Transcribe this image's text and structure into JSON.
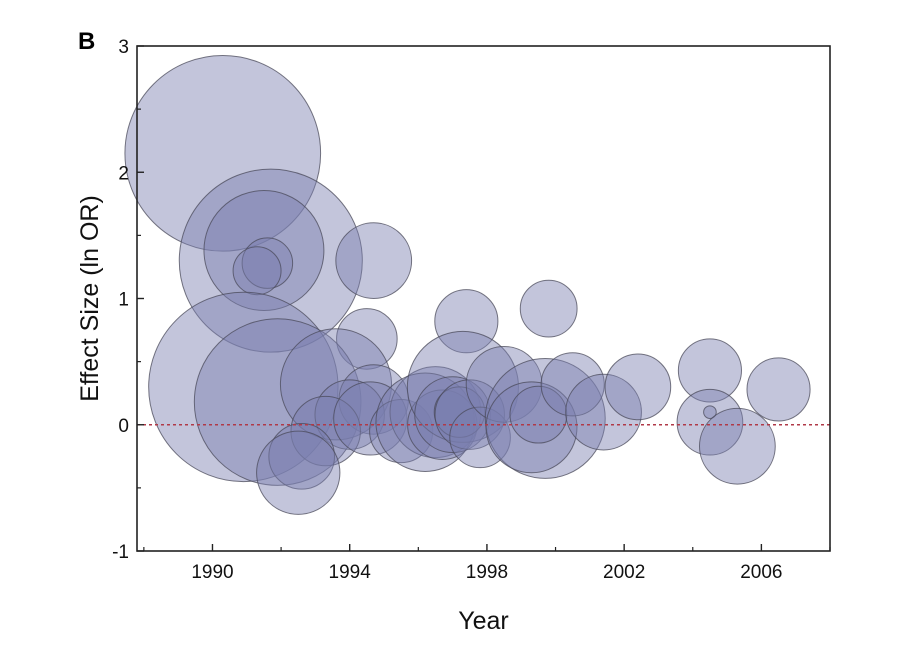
{
  "panel_label": "B",
  "chart_data": {
    "type": "scatter",
    "variant": "bubble",
    "xlabel": "Year",
    "ylabel": "Effect Size (ln OR)",
    "xlim": [
      1987.8,
      2008
    ],
    "ylim": [
      -1,
      3
    ],
    "x_ticks": [
      1990,
      1994,
      1998,
      2002,
      2006
    ],
    "y_ticks": [
      -1,
      0,
      1,
      2,
      3
    ],
    "reference_line": {
      "y": 0,
      "style": "dotted",
      "color": "#b03a48"
    },
    "bubble_color": "#7a7fb0",
    "bubble_edge_color": "#4a4a5a",
    "points": [
      {
        "x": 1990.3,
        "y": 2.15,
        "r": 1.55
      },
      {
        "x": 1991.7,
        "y": 1.3,
        "r": 1.45
      },
      {
        "x": 1991.5,
        "y": 1.38,
        "r": 0.95
      },
      {
        "x": 1991.6,
        "y": 1.28,
        "r": 0.4
      },
      {
        "x": 1991.3,
        "y": 1.22,
        "r": 0.38
      },
      {
        "x": 1994.7,
        "y": 1.3,
        "r": 0.6
      },
      {
        "x": 1994.5,
        "y": 0.68,
        "r": 0.48
      },
      {
        "x": 1990.9,
        "y": 0.3,
        "r": 1.5
      },
      {
        "x": 1991.9,
        "y": 0.18,
        "r": 1.32
      },
      {
        "x": 1993.6,
        "y": 0.32,
        "r": 0.88
      },
      {
        "x": 1994.7,
        "y": 0.2,
        "r": 0.55
      },
      {
        "x": 1994.0,
        "y": 0.08,
        "r": 0.55
      },
      {
        "x": 1993.3,
        "y": -0.05,
        "r": 0.55
      },
      {
        "x": 1992.6,
        "y": -0.25,
        "r": 0.52
      },
      {
        "x": 1992.5,
        "y": -0.38,
        "r": 0.66
      },
      {
        "x": 1994.6,
        "y": 0.05,
        "r": 0.58
      },
      {
        "x": 1995.5,
        "y": -0.05,
        "r": 0.5
      },
      {
        "x": 1996.5,
        "y": 0.1,
        "r": 0.72
      },
      {
        "x": 1996.2,
        "y": 0.02,
        "r": 0.78
      },
      {
        "x": 1996.7,
        "y": 0.0,
        "r": 0.55
      },
      {
        "x": 1997.4,
        "y": 0.82,
        "r": 0.5
      },
      {
        "x": 1997.3,
        "y": 0.3,
        "r": 0.88
      },
      {
        "x": 1997.0,
        "y": 0.08,
        "r": 0.6
      },
      {
        "x": 1997.2,
        "y": 0.1,
        "r": 0.4
      },
      {
        "x": 1997.5,
        "y": 0.08,
        "r": 0.55
      },
      {
        "x": 1997.8,
        "y": -0.1,
        "r": 0.48
      },
      {
        "x": 1998.5,
        "y": 0.32,
        "r": 0.6
      },
      {
        "x": 1999.8,
        "y": 0.92,
        "r": 0.45
      },
      {
        "x": 1999.7,
        "y": 0.05,
        "r": 0.95
      },
      {
        "x": 1999.3,
        "y": -0.02,
        "r": 0.72
      },
      {
        "x": 1999.5,
        "y": 0.08,
        "r": 0.45
      },
      {
        "x": 2000.5,
        "y": 0.32,
        "r": 0.5
      },
      {
        "x": 2001.4,
        "y": 0.1,
        "r": 0.6
      },
      {
        "x": 2002.4,
        "y": 0.3,
        "r": 0.52
      },
      {
        "x": 2004.5,
        "y": 0.43,
        "r": 0.5
      },
      {
        "x": 2004.5,
        "y": 0.02,
        "r": 0.52
      },
      {
        "x": 2004.5,
        "y": 0.1,
        "r": 0.1
      },
      {
        "x": 2005.3,
        "y": -0.17,
        "r": 0.6
      },
      {
        "x": 2006.5,
        "y": 0.28,
        "r": 0.5
      }
    ]
  }
}
